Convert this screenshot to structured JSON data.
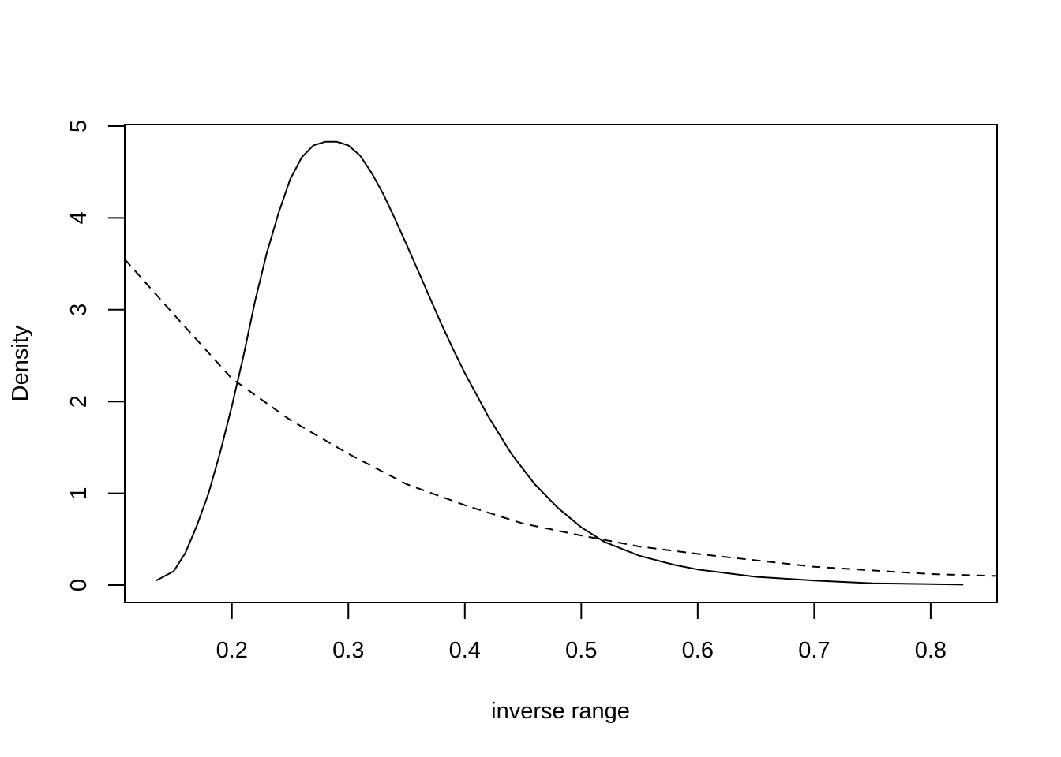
{
  "chart_data": {
    "type": "line",
    "title": "",
    "xlabel": "inverse range",
    "ylabel": "Density",
    "xlim": [
      0.108,
      0.857
    ],
    "ylim": [
      -0.18,
      5.0
    ],
    "x_ticks": [
      0.2,
      0.3,
      0.4,
      0.5,
      0.6,
      0.7,
      0.8
    ],
    "x_tick_labels": [
      "0.2",
      "0.3",
      "0.4",
      "0.5",
      "0.6",
      "0.7",
      "0.8"
    ],
    "y_ticks": [
      0,
      1,
      2,
      3,
      4,
      5
    ],
    "y_tick_labels": [
      "0",
      "1",
      "2",
      "3",
      "4",
      "5"
    ],
    "grid": false,
    "legend": "none",
    "series": [
      {
        "line_style": "solid",
        "color": "#000000",
        "x": [
          0.135,
          0.15,
          0.16,
          0.17,
          0.18,
          0.19,
          0.2,
          0.21,
          0.22,
          0.23,
          0.24,
          0.25,
          0.26,
          0.27,
          0.28,
          0.29,
          0.293,
          0.3,
          0.31,
          0.32,
          0.33,
          0.34,
          0.35,
          0.36,
          0.37,
          0.38,
          0.39,
          0.4,
          0.42,
          0.44,
          0.46,
          0.48,
          0.5,
          0.52,
          0.55,
          0.58,
          0.6,
          0.65,
          0.7,
          0.75,
          0.8,
          0.828
        ],
        "y": [
          0.05,
          0.15,
          0.35,
          0.65,
          1.0,
          1.45,
          1.95,
          2.5,
          3.1,
          3.62,
          4.05,
          4.42,
          4.66,
          4.79,
          4.83,
          4.83,
          4.82,
          4.79,
          4.68,
          4.49,
          4.26,
          3.99,
          3.71,
          3.42,
          3.13,
          2.84,
          2.57,
          2.31,
          1.84,
          1.43,
          1.1,
          0.84,
          0.63,
          0.47,
          0.32,
          0.22,
          0.17,
          0.09,
          0.05,
          0.02,
          0.01,
          0.005
        ]
      },
      {
        "line_style": "dashed",
        "color": "#000000",
        "x": [
          0.108,
          0.15,
          0.2,
          0.25,
          0.3,
          0.35,
          0.4,
          0.45,
          0.5,
          0.55,
          0.6,
          0.65,
          0.7,
          0.75,
          0.8,
          0.857
        ],
        "y": [
          3.55,
          2.95,
          2.25,
          1.8,
          1.43,
          1.1,
          0.87,
          0.67,
          0.54,
          0.42,
          0.34,
          0.27,
          0.2,
          0.16,
          0.12,
          0.1
        ]
      }
    ]
  }
}
